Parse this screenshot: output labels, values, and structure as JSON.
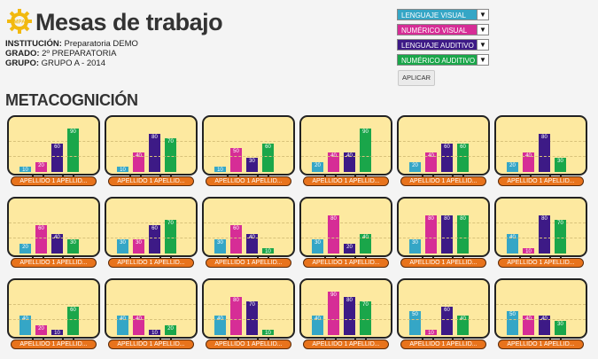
{
  "header": {
    "title": "Mesas de trabajo",
    "logo_text": "MPA",
    "institution_label": "INSTITUCIÓN:",
    "institution_value": "Preparatoria DEMO",
    "grade_label": "GRADO:",
    "grade_value": "2º PREPARATORIA",
    "group_label": "GRUPO:",
    "group_value": "GRUPO A - 2014"
  },
  "section_title": "METACOGNICIÓN",
  "filters": [
    {
      "label": "LENGUAJE VISUAL",
      "color": "#35a6c6"
    },
    {
      "label": "NUMÉRICO VISUAL",
      "color": "#d62d96"
    },
    {
      "label": "LENGUAJE AUDITIVO",
      "color": "#3d1a86"
    },
    {
      "label": "NUMÉRICO AUDITIVO",
      "color": "#1aa64a"
    }
  ],
  "apply_label": "APLICAR",
  "series_colors": [
    "#35a6c6",
    "#d62d96",
    "#3d1a86",
    "#1aa64a"
  ],
  "desks": [
    {
      "name": "APELLIDO 1 APELLID...",
      "values": [
        10,
        20,
        60,
        90
      ]
    },
    {
      "name": "APELLIDO 1 APELLID...",
      "values": [
        10,
        40,
        80,
        70
      ]
    },
    {
      "name": "APELLIDO 1 APELLID...",
      "values": [
        10,
        50,
        30,
        60
      ]
    },
    {
      "name": "APELLIDO 1 APELLID...",
      "values": [
        20,
        40,
        40,
        90
      ]
    },
    {
      "name": "APELLIDO 1 APELLID...",
      "values": [
        20,
        40,
        60,
        60
      ]
    },
    {
      "name": "APELLIDO 1 APELLID...",
      "values": [
        20,
        40,
        80,
        30
      ]
    },
    {
      "name": "APELLIDO 1 APELLID...",
      "values": [
        20,
        60,
        40,
        30
      ]
    },
    {
      "name": "APELLIDO 1 APELLID...",
      "values": [
        30,
        30,
        60,
        70
      ]
    },
    {
      "name": "APELLIDO 1 APELLID...",
      "values": [
        30,
        60,
        40,
        10
      ]
    },
    {
      "name": "APELLIDO 1 APELLID...",
      "values": [
        30,
        80,
        20,
        40
      ]
    },
    {
      "name": "APELLIDO 1 APELLID...",
      "values": [
        30,
        80,
        80,
        80
      ]
    },
    {
      "name": "APELLIDO 1 APELLID...",
      "values": [
        40,
        10,
        80,
        70
      ]
    },
    {
      "name": "APELLIDO 1 APELLID...",
      "values": [
        40,
        20,
        10,
        60
      ]
    },
    {
      "name": "APELLIDO 1 APELLID...",
      "values": [
        40,
        40,
        10,
        20
      ]
    },
    {
      "name": "APELLIDO 1 APELLID...",
      "values": [
        40,
        80,
        70,
        10
      ]
    },
    {
      "name": "APELLIDO 1 APELLID...",
      "values": [
        40,
        90,
        80,
        70
      ]
    },
    {
      "name": "APELLIDO 1 APELLID...",
      "values": [
        50,
        10,
        60,
        40
      ]
    },
    {
      "name": "APELLIDO 1 APELLID...",
      "values": [
        50,
        40,
        40,
        30
      ]
    }
  ]
}
